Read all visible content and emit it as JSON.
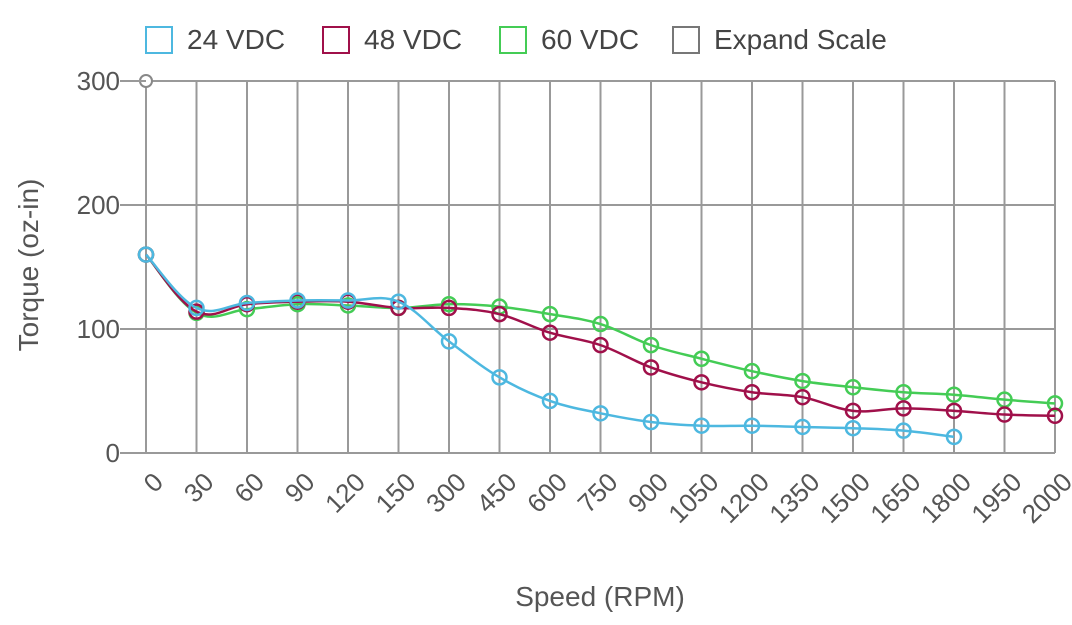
{
  "legend": {
    "items": [
      {
        "key": "v24",
        "label": "24 VDC",
        "color": "#4db8e0"
      },
      {
        "key": "v48",
        "label": "48 VDC",
        "color": "#a0104a"
      },
      {
        "key": "v60",
        "label": "60 VDC",
        "color": "#44cc55"
      },
      {
        "key": "expand",
        "label": "Expand Scale",
        "color": "#777777"
      }
    ]
  },
  "chart_data": {
    "type": "line",
    "title": "",
    "xlabel": "Speed (RPM)",
    "ylabel": "Torque (oz-in)",
    "categories": [
      "0",
      "30",
      "60",
      "90",
      "120",
      "150",
      "300",
      "450",
      "600",
      "750",
      "900",
      "1050",
      "1200",
      "1350",
      "1500",
      "1650",
      "1800",
      "1950",
      "2000"
    ],
    "ylim": [
      0,
      300
    ],
    "yticks": [
      0,
      100,
      200,
      300
    ],
    "grid": true,
    "legend_position": "top",
    "series": [
      {
        "name": "24 VDC",
        "color": "#4db8e0",
        "values": [
          160,
          117,
          121,
          123,
          123,
          122,
          90,
          61,
          42,
          32,
          25,
          22,
          22,
          21,
          20,
          18,
          13,
          null,
          null
        ]
      },
      {
        "name": "48 VDC",
        "color": "#a0104a",
        "values": [
          160,
          114,
          120,
          122,
          122,
          117,
          117,
          112,
          97,
          87,
          69,
          57,
          49,
          45,
          34,
          36,
          34,
          31,
          30
        ]
      },
      {
        "name": "60 VDC",
        "color": "#44cc55",
        "values": [
          160,
          113,
          116,
          120,
          119,
          117,
          120,
          118,
          112,
          104,
          87,
          76,
          66,
          58,
          53,
          49,
          47,
          43,
          40
        ]
      }
    ]
  }
}
